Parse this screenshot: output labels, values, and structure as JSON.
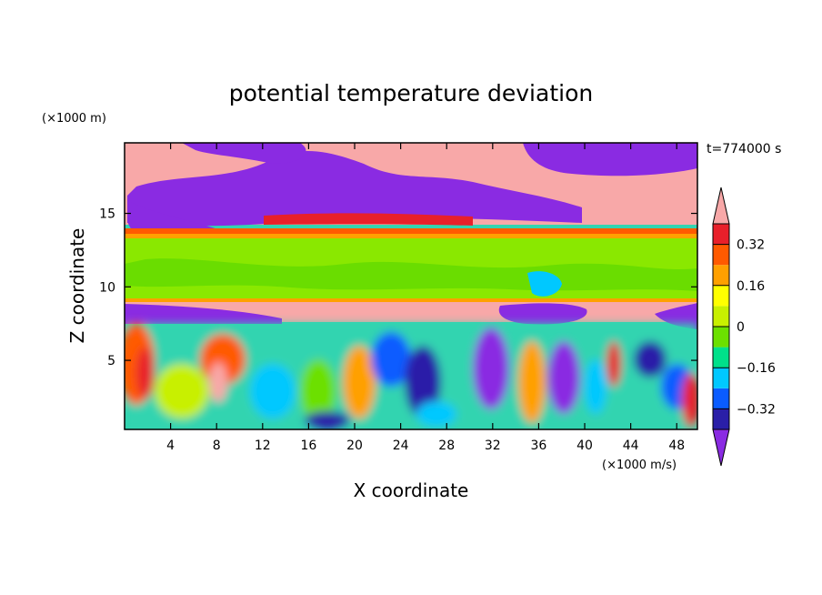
{
  "chart_data": {
    "type": "heatmap",
    "title": "potential temperature deviation",
    "xlabel": "X coordinate",
    "ylabel": "Z coordinate",
    "x_unit": "(×1000 m/s)",
    "y_unit": "(×1000 m)",
    "time_label": "t=774000 s",
    "xlim": [
      0,
      49.8
    ],
    "ylim": [
      0.3,
      19.8
    ],
    "x_ticks": [
      4,
      8,
      12,
      16,
      20,
      24,
      28,
      32,
      36,
      40,
      44,
      48
    ],
    "x_tick_labels": [
      "4",
      "8",
      "12",
      "16",
      "20",
      "24",
      "28",
      "32",
      "36",
      "40",
      "44",
      "48"
    ],
    "y_ticks": [
      5,
      10,
      15
    ],
    "y_tick_labels": [
      "5",
      "10",
      "15"
    ],
    "colorbar": {
      "levels": [
        -0.4,
        -0.32,
        -0.24,
        -0.16,
        -0.08,
        0,
        0.08,
        0.16,
        0.24,
        0.32,
        0.4
      ],
      "tick_values": [
        -0.32,
        -0.16,
        0,
        0.16,
        0.32
      ],
      "tick_labels": [
        "−0.32",
        "−0.16",
        "0",
        "0.16",
        "0.32"
      ],
      "colors": [
        "#8a2be2",
        "#2a1fa8",
        "#0a5cff",
        "#00c8ff",
        "#00e08a",
        "#6ce000",
        "#c8f000",
        "#ffff00",
        "#ffa000",
        "#ff5a00",
        "#e8202a",
        "#f8a8a8"
      ],
      "extend": "both"
    }
  }
}
